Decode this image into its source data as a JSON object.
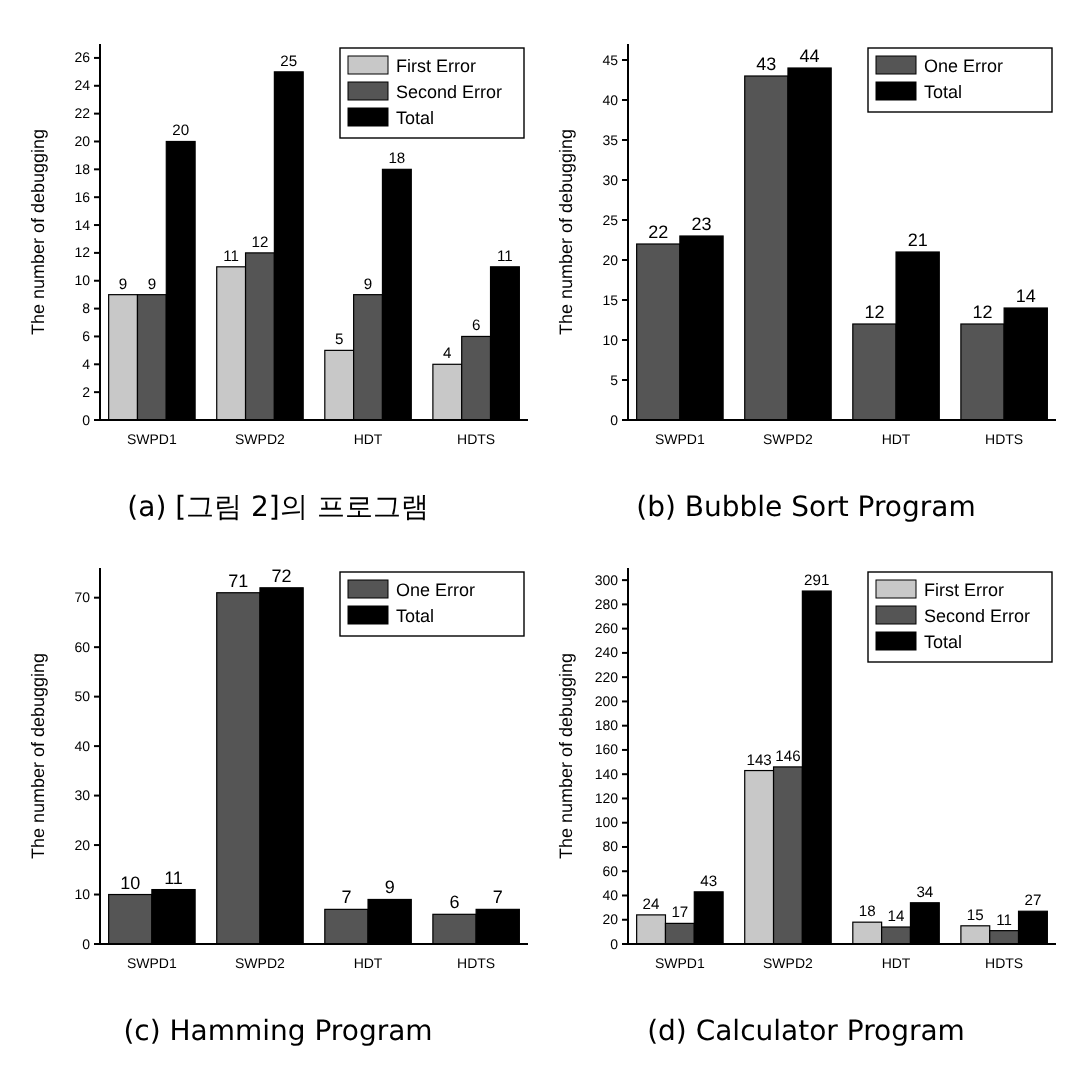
{
  "chart_data": [
    {
      "type": "bar",
      "title": "(a) [그림 2]의 프로그램",
      "ylabel": "The number of debugging",
      "categories": [
        "SWPD1",
        "SWPD2",
        "HDT",
        "HDTS"
      ],
      "series": [
        {
          "name": "First Error",
          "color": "#c8c8c8",
          "values": [
            9,
            11,
            5,
            4
          ]
        },
        {
          "name": "Second Error",
          "color": "#555555",
          "values": [
            9,
            12,
            9,
            6
          ]
        },
        {
          "name": "Total",
          "color": "#000000",
          "values": [
            20,
            25,
            18,
            11
          ]
        }
      ],
      "ylim": [
        0,
        27
      ],
      "yticks": [
        0,
        2,
        4,
        6,
        8,
        10,
        12,
        14,
        16,
        18,
        20,
        22,
        24,
        26
      ],
      "data_labels": true,
      "legend": "top right"
    },
    {
      "type": "bar",
      "title": "(b) Bubble Sort Program",
      "ylabel": "The number of debugging",
      "categories": [
        "SWPD1",
        "SWPD2",
        "HDT",
        "HDTS"
      ],
      "series": [
        {
          "name": "One Error",
          "color": "#555555",
          "values": [
            22,
            43,
            12,
            12
          ]
        },
        {
          "name": "Total",
          "color": "#000000",
          "values": [
            23,
            44,
            21,
            14
          ]
        }
      ],
      "ylim": [
        0,
        47
      ],
      "yticks": [
        0,
        5,
        10,
        15,
        20,
        25,
        30,
        35,
        40,
        45
      ],
      "data_labels": true,
      "legend": "top right"
    },
    {
      "type": "bar",
      "title": "(c) Hamming Program",
      "ylabel": "The number of debugging",
      "categories": [
        "SWPD1",
        "SWPD2",
        "HDT",
        "HDTS"
      ],
      "series": [
        {
          "name": "One Error",
          "color": "#555555",
          "values": [
            10,
            71,
            7,
            6
          ]
        },
        {
          "name": "Total",
          "color": "#000000",
          "values": [
            11,
            72,
            9,
            7
          ]
        }
      ],
      "ylim": [
        0,
        76
      ],
      "yticks": [
        0,
        10,
        20,
        30,
        40,
        50,
        60,
        70
      ],
      "data_labels": true,
      "legend": "top right"
    },
    {
      "type": "bar",
      "title": "(d) Calculator Program",
      "ylabel": "The number of debugging",
      "categories": [
        "SWPD1",
        "SWPD2",
        "HDT",
        "HDTS"
      ],
      "series": [
        {
          "name": "First Error",
          "color": "#c8c8c8",
          "values": [
            24,
            143,
            18,
            15
          ]
        },
        {
          "name": "Second Error",
          "color": "#555555",
          "values": [
            17,
            146,
            14,
            11
          ]
        },
        {
          "name": "Total",
          "color": "#000000",
          "values": [
            43,
            291,
            34,
            27
          ]
        }
      ],
      "ylim": [
        0,
        310
      ],
      "yticks": [
        0,
        20,
        40,
        60,
        80,
        100,
        120,
        140,
        160,
        180,
        200,
        220,
        240,
        260,
        280,
        300
      ],
      "data_labels": true,
      "legend": "top right"
    }
  ]
}
